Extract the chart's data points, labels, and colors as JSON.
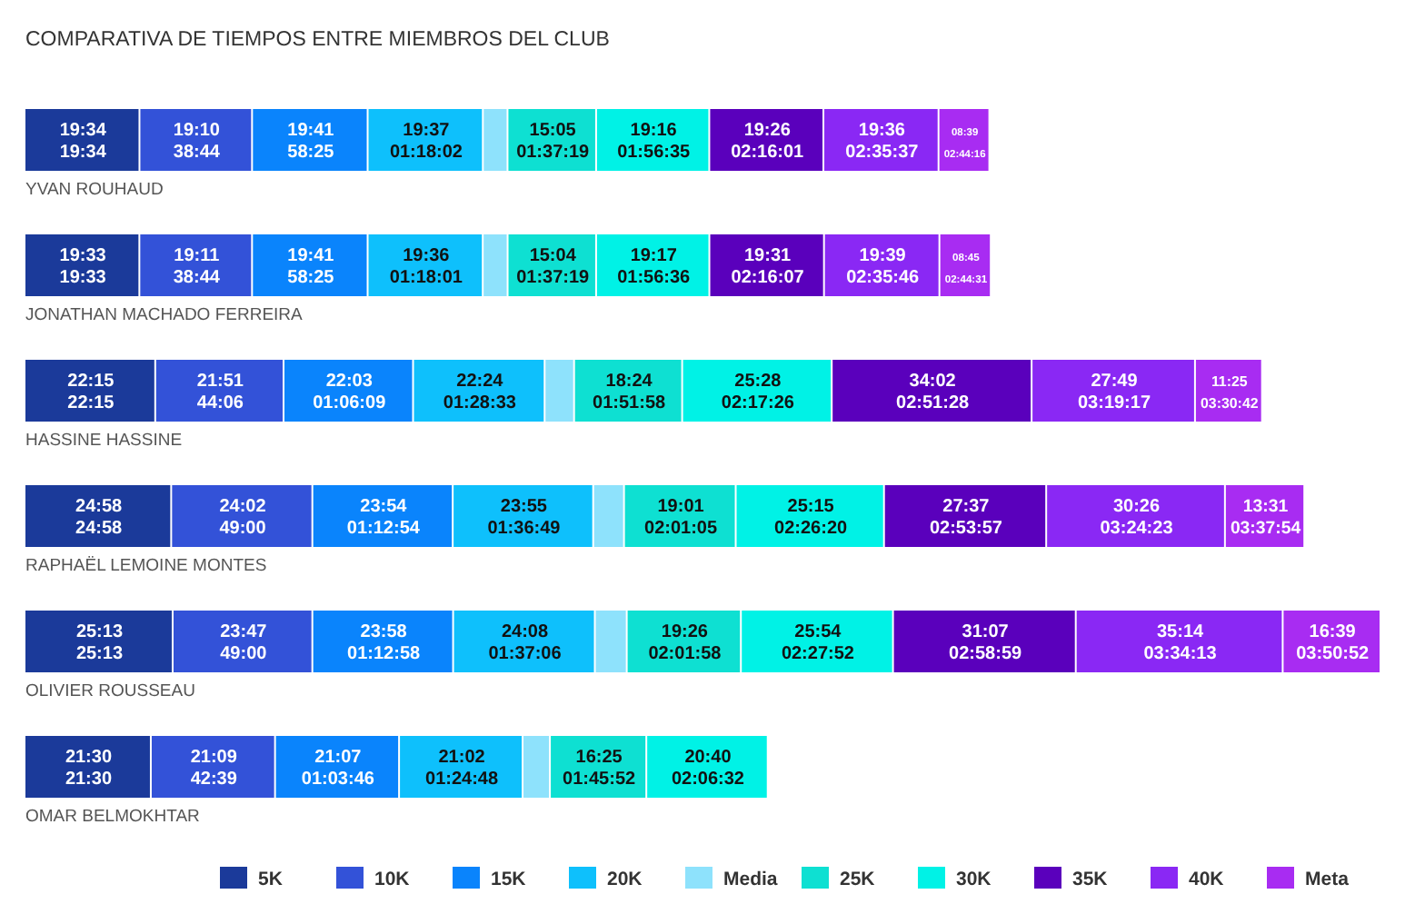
{
  "chart_data": {
    "type": "bar",
    "orientation": "horizontal",
    "stacked": true,
    "title": "COMPARATIVA DE TIEMPOS ENTRE MIEMBROS DEL CLUB",
    "legend": "bottom",
    "categories": [
      "YVAN ROUHAUD",
      "JONATHAN MACHADO FERREIRA",
      "HASSINE HASSINE",
      "RAPHAËL LEMOINE MONTES",
      "OLIVIER ROUSSEAU",
      "OMAR BELMOKHTAR"
    ],
    "series": [
      {
        "name": "5K",
        "color": "#1b3a9a",
        "values": [
          19.567,
          19.55,
          22.25,
          24.967,
          25.217,
          21.5
        ],
        "value_labels": [
          "19:34\n19:34",
          "19:33\n19:33",
          "22:15\n22:15",
          "24:58\n24:58",
          "25:13\n25:13",
          "21:30\n21:30"
        ]
      },
      {
        "name": "10K",
        "color": "#3352d8",
        "values": [
          19.167,
          19.183,
          21.85,
          24.033,
          23.783,
          21.15
        ],
        "value_labels": [
          "19:10\n38:44",
          "19:11\n38:44",
          "21:51\n44:06",
          "24:02\n49:00",
          "23:47\n49:00",
          "21:09\n42:39"
        ]
      },
      {
        "name": "15K",
        "color": "#0a84fc",
        "values": [
          19.683,
          19.683,
          22.05,
          23.9,
          23.967,
          21.117
        ],
        "value_labels": [
          "19:41\n58:25",
          "19:41\n58:25",
          "22:03\n01:06:09",
          "23:54\n01:12:54",
          "23:58\n01:12:58",
          "21:07\n01:03:46"
        ]
      },
      {
        "name": "20K",
        "color": "#0ec0fc",
        "values": [
          19.617,
          19.6,
          22.4,
          23.917,
          24.133,
          21.033
        ],
        "value_labels": [
          "19:37\n01:18:02",
          "19:36\n01:18:01",
          "22:24\n01:28:33",
          "23:55\n01:36:49",
          "24:08\n01:37:06",
          "21:02\n01:24:48"
        ]
      },
      {
        "name": "Media",
        "color": "#8ee2fc",
        "values": [
          4.2,
          4.233,
          5.017,
          5.25,
          5.433,
          4.65
        ],
        "value_labels": [
          null,
          null,
          null,
          null,
          null,
          null
        ]
      },
      {
        "name": "25K",
        "color": "#0ee0d2",
        "values": [
          15.083,
          15.067,
          18.4,
          19.017,
          19.433,
          16.417
        ],
        "value_labels": [
          "15:05\n01:37:19",
          "15:04\n01:37:19",
          "18:24\n01:51:58",
          "19:01\n02:01:05",
          "19:26\n02:01:58",
          "16:25\n01:45:52"
        ]
      },
      {
        "name": "30K",
        "color": "#00f2e6",
        "values": [
          19.267,
          19.283,
          25.467,
          25.25,
          25.9,
          20.667
        ],
        "value_labels": [
          "19:16\n01:56:35",
          "19:17\n01:56:36",
          "25:28\n02:17:26",
          "25:15\n02:26:20",
          "25:54\n02:27:52",
          "20:40\n02:06:32"
        ]
      },
      {
        "name": "35K",
        "color": "#5a00bc",
        "values": [
          19.433,
          19.517,
          34.033,
          27.617,
          31.117,
          null
        ],
        "value_labels": [
          "19:26\n02:16:01",
          "19:31\n02:16:07",
          "34:02\n02:51:28",
          "27:37\n02:53:57",
          "31:07\n02:58:59",
          null
        ]
      },
      {
        "name": "40K",
        "color": "#8a28f4",
        "values": [
          19.6,
          19.65,
          27.817,
          30.433,
          35.233,
          null
        ],
        "value_labels": [
          "19:36\n02:35:37",
          "19:39\n02:35:46",
          "27:49\n03:19:17",
          "30:26\n03:24:23",
          "35:14\n03:34:13",
          null
        ]
      },
      {
        "name": "Meta",
        "color": "#a82cf2",
        "values": [
          8.65,
          8.75,
          11.417,
          13.517,
          16.65,
          null
        ],
        "value_labels": [
          "08:39\n02:44:16",
          "08:45\n02:44:31",
          "11:25\n03:30:42",
          "13:31\n03:37:54",
          "16:39\n03:50:52",
          null
        ]
      }
    ]
  }
}
